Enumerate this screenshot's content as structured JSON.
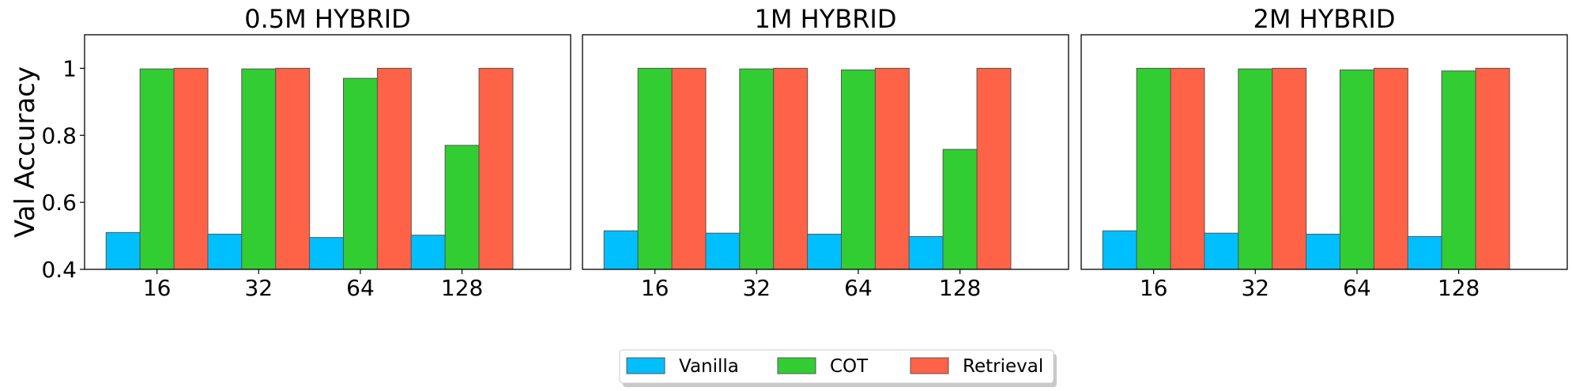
{
  "chart_data": [
    {
      "type": "bar",
      "title": "0.5M HYBRID",
      "categories": [
        "16",
        "32",
        "64",
        "128"
      ],
      "ylabel": "Val Accuracy",
      "ylim": [
        0.4,
        1.1
      ],
      "yticks": [
        "0.4",
        "0.6",
        "0.8",
        "1"
      ],
      "grid": false,
      "series": [
        {
          "name": "Vanilla",
          "values": [
            0.51,
            0.505,
            0.495,
            0.502
          ]
        },
        {
          "name": "COT",
          "values": [
            0.998,
            0.998,
            0.97,
            0.77
          ]
        },
        {
          "name": "Retrieval",
          "values": [
            1.0,
            1.0,
            1.0,
            1.0
          ]
        }
      ]
    },
    {
      "type": "bar",
      "title": "1M HYBRID",
      "categories": [
        "16",
        "32",
        "64",
        "128"
      ],
      "ylabel": "",
      "ylim": [
        0.4,
        1.1
      ],
      "yticks": [],
      "grid": false,
      "series": [
        {
          "name": "Vanilla",
          "values": [
            0.515,
            0.508,
            0.505,
            0.498
          ]
        },
        {
          "name": "COT",
          "values": [
            1.0,
            0.998,
            0.995,
            0.758
          ]
        },
        {
          "name": "Retrieval",
          "values": [
            1.0,
            1.0,
            1.0,
            1.0
          ]
        }
      ]
    },
    {
      "type": "bar",
      "title": "2M HYBRID",
      "categories": [
        "16",
        "32",
        "64",
        "128"
      ],
      "ylabel": "",
      "ylim": [
        0.4,
        1.1
      ],
      "yticks": [],
      "grid": false,
      "series": [
        {
          "name": "Vanilla",
          "values": [
            0.515,
            0.508,
            0.505,
            0.498
          ]
        },
        {
          "name": "COT",
          "values": [
            1.0,
            0.998,
            0.995,
            0.992
          ]
        },
        {
          "name": "Retrieval",
          "values": [
            1.0,
            1.0,
            1.0,
            1.0
          ]
        }
      ]
    }
  ],
  "legend": {
    "placement": "bottom-center",
    "entries": [
      {
        "label": "Vanilla",
        "color": "#00BFFF"
      },
      {
        "label": "COT",
        "color": "#32CD32"
      },
      {
        "label": "Retrieval",
        "color": "#FF6347"
      }
    ]
  },
  "colors": {
    "Vanilla": "#00BFFF",
    "COT": "#32CD32",
    "Retrieval": "#FF6347",
    "bar_edge": "#555555"
  }
}
